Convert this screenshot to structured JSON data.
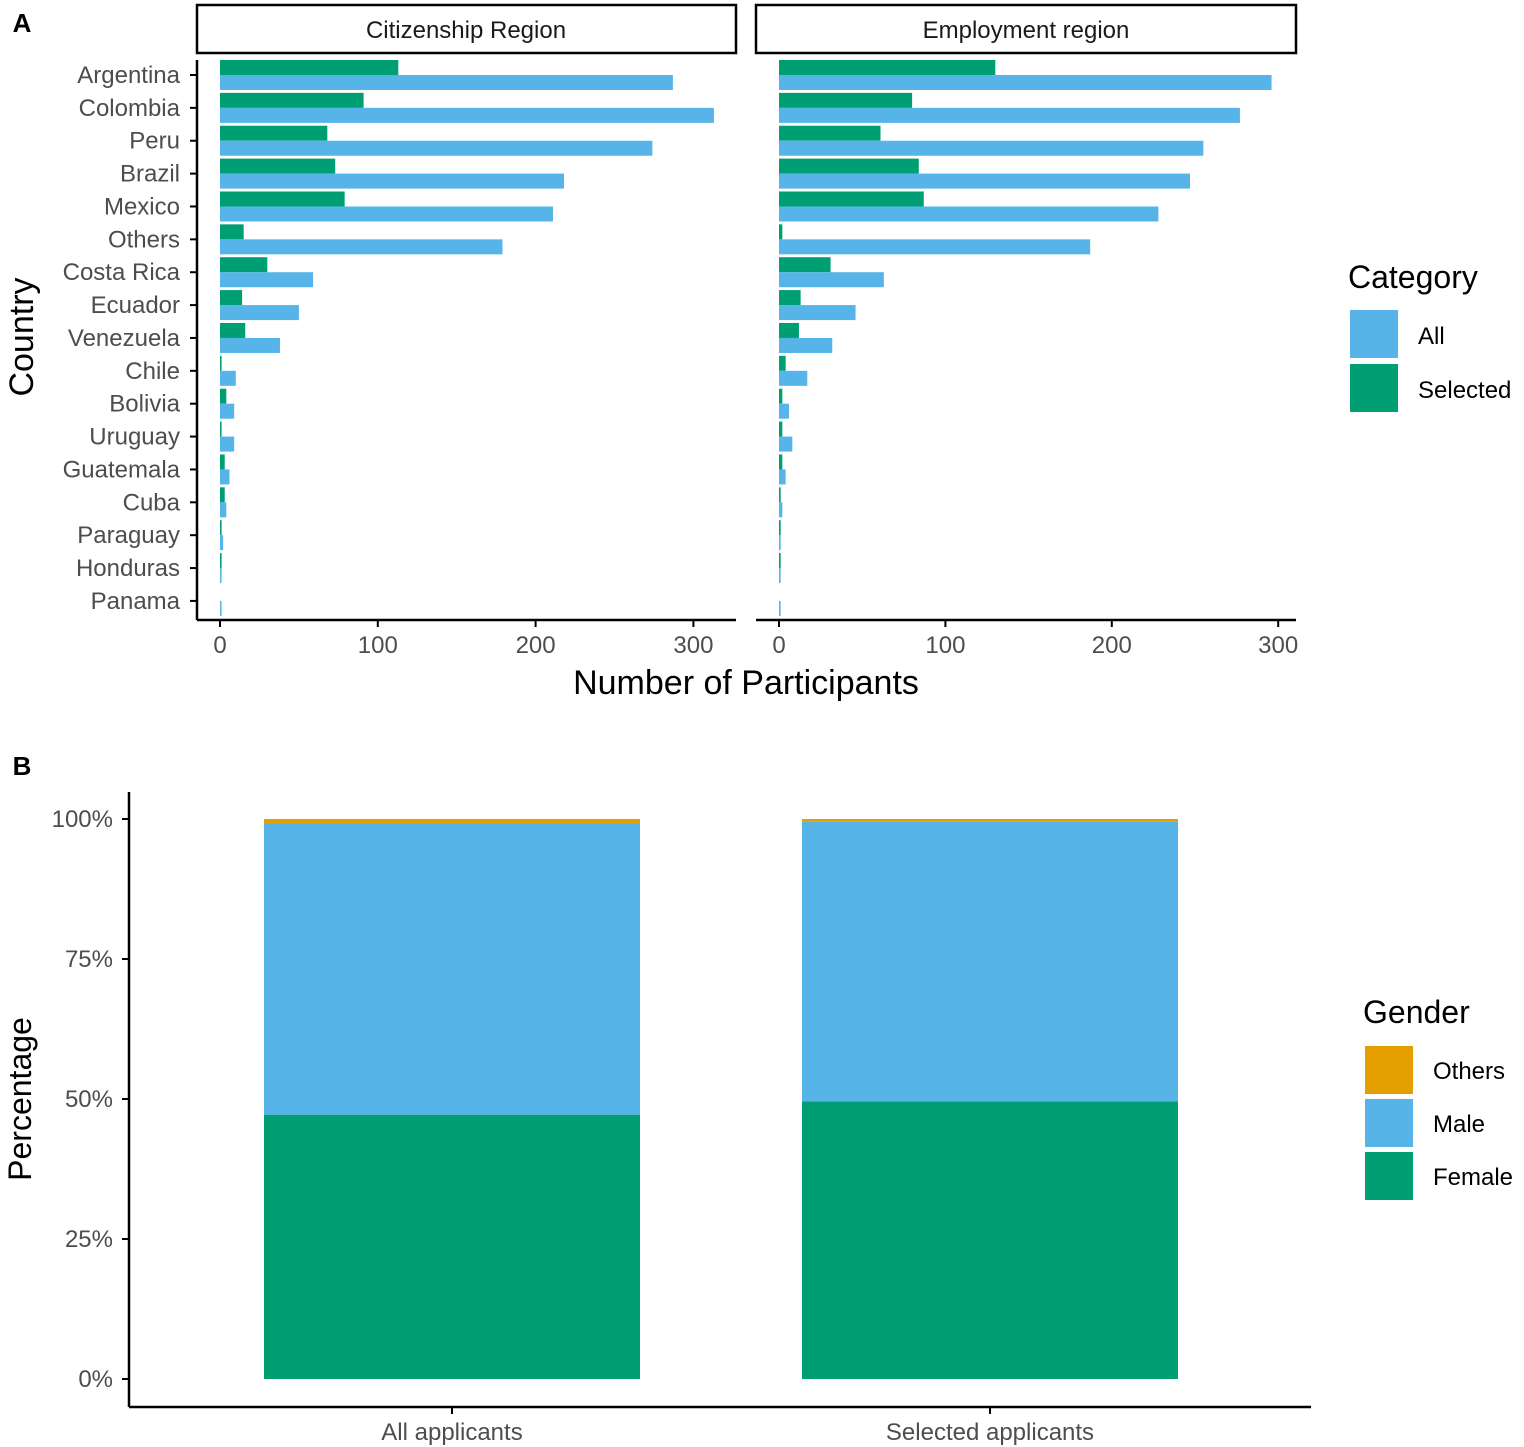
{
  "panel_labels": {
    "a": "A",
    "b": "B"
  },
  "colors": {
    "all": "#56B4E9",
    "selected": "#009E73",
    "male": "#56B4E9",
    "female": "#009E73",
    "others": "#E69F00",
    "axis": "#000000",
    "tick_text": "#4d4d4d"
  },
  "chart_data": [
    {
      "type": "bar",
      "orientation": "horizontal",
      "title": "",
      "ylabel": "Country",
      "xlabel": "Number of Participants",
      "xlim": [
        -15,
        326
      ],
      "xticks": [
        "0",
        "100",
        "200",
        "300"
      ],
      "facets": [
        "Citizenship Region",
        "Employment region"
      ],
      "categories": [
        "Argentina",
        "Colombia",
        "Peru",
        "Brazil",
        "Mexico",
        "Others",
        "Costa Rica",
        "Ecuador",
        "Venezuela",
        "Chile",
        "Bolivia",
        "Uruguay",
        "Guatemala",
        "Cuba",
        "Paraguay",
        "Honduras",
        "Panama"
      ],
      "legend": {
        "title": "Category",
        "items": [
          "All",
          "Selected"
        ],
        "position": "right"
      },
      "series": [
        {
          "facet": "Citizenship Region",
          "name": "All",
          "values": [
            287,
            313,
            274,
            218,
            211,
            179,
            59,
            50,
            38,
            10,
            9,
            9,
            6,
            4,
            2,
            1,
            1
          ]
        },
        {
          "facet": "Citizenship Region",
          "name": "Selected",
          "values": [
            113,
            91,
            68,
            73,
            79,
            15,
            30,
            14,
            16,
            1,
            4,
            1,
            3,
            3,
            1,
            1,
            0
          ]
        },
        {
          "facet": "Employment region",
          "name": "All",
          "values": [
            296,
            277,
            255,
            247,
            228,
            187,
            63,
            46,
            32,
            17,
            6,
            8,
            4,
            2,
            1,
            1,
            1
          ]
        },
        {
          "facet": "Employment region",
          "name": "Selected",
          "values": [
            130,
            80,
            61,
            84,
            87,
            2,
            31,
            13,
            12,
            4,
            2,
            2,
            2,
            1,
            1,
            1,
            0
          ]
        }
      ]
    },
    {
      "type": "bar",
      "stacked": true,
      "title": "",
      "ylabel": "Percentage",
      "xlabel": "",
      "ylim": [
        0,
        100
      ],
      "yticks": [
        "0%",
        "25%",
        "50%",
        "75%",
        "100%"
      ],
      "categories": [
        "All applicants",
        "Selected applicants"
      ],
      "legend": {
        "title": "Gender",
        "items": [
          "Others",
          "Male",
          "Female"
        ],
        "position": "right"
      },
      "series": [
        {
          "name": "Female",
          "values": [
            47.2,
            49.6
          ]
        },
        {
          "name": "Male",
          "values": [
            52.0,
            50.0
          ]
        },
        {
          "name": "Others",
          "values": [
            0.8,
            0.4
          ]
        }
      ]
    }
  ]
}
